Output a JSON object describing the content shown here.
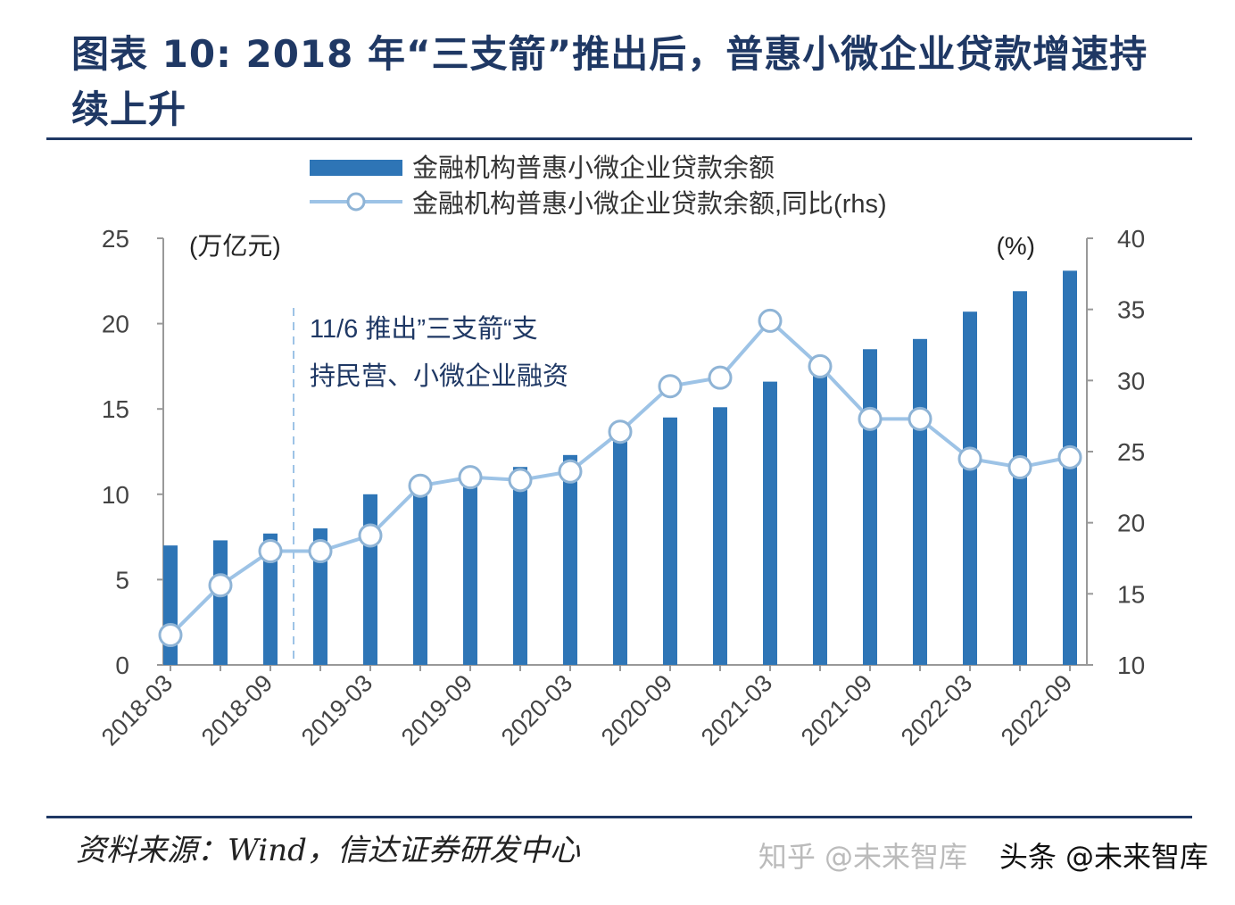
{
  "title": "图表 10: 2018 年“三支箭”推出后，普惠小微企业贷款增速持续上升",
  "source": "资料来源：Wind，信达证券研发中心",
  "watermark": "头条 @未来智库",
  "watermark2": "知乎 @未来智库",
  "chart_data": {
    "type": "bar+line",
    "categories": [
      "2018-03",
      "2018-06",
      "2018-09",
      "2018-12",
      "2019-03",
      "2019-06",
      "2019-09",
      "2019-12",
      "2020-03",
      "2020-06",
      "2020-09",
      "2020-12",
      "2021-03",
      "2021-06",
      "2021-09",
      "2021-12",
      "2022-03",
      "2022-06",
      "2022-09"
    ],
    "x_tick_labels": [
      "2018-03",
      "2018-09",
      "2019-03",
      "2019-09",
      "2020-03",
      "2020-09",
      "2021-03",
      "2021-09",
      "2022-03",
      "2022-09"
    ],
    "series": [
      {
        "name": "金融机构普惠小微企业贷款余额",
        "type": "bar",
        "axis": "left",
        "color": "#2e75b6",
        "values": [
          7.0,
          7.3,
          7.7,
          8.0,
          10.0,
          10.7,
          11.0,
          11.6,
          12.3,
          13.5,
          14.5,
          15.1,
          16.6,
          17.6,
          18.5,
          19.1,
          20.7,
          21.9,
          23.1
        ]
      },
      {
        "name": "金融机构普惠小微企业贷款余额,同比(rhs)",
        "type": "line",
        "axis": "right",
        "color": "#9dc3e6",
        "values": [
          12.1,
          15.6,
          18.0,
          18.0,
          19.1,
          22.6,
          23.2,
          23.0,
          23.6,
          26.4,
          29.6,
          30.2,
          34.2,
          31.0,
          27.3,
          27.3,
          24.5,
          23.9,
          24.6
        ]
      }
    ],
    "ylabel_left": "(万亿元)",
    "ylim_left": [
      0,
      25
    ],
    "yticks_left": [
      0,
      5,
      10,
      15,
      20,
      25
    ],
    "ylabel_right": "(%)",
    "ylim_right": [
      10,
      40
    ],
    "yticks_right": [
      10,
      15,
      20,
      25,
      30,
      35,
      40
    ],
    "annotation": {
      "line1": "11/6 推出”三支箭“支",
      "line2": "持民营、小微企业融资",
      "at": "2018-11"
    },
    "grid": false,
    "legend_position": "top"
  }
}
